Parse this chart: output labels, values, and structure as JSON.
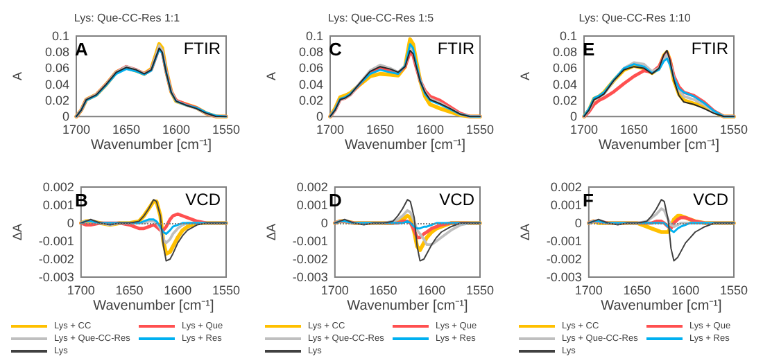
{
  "chart_data": [
    {
      "type": "line",
      "title": "Lys: Que-CC-Res 1:1",
      "xlabel": "Wavenumber [cm⁻¹]",
      "ylabel": "A",
      "annotations": [
        "A",
        "FTIR"
      ],
      "marker": "none",
      "line_style": "solid",
      "x": [
        1700,
        1695,
        1690,
        1685,
        1680,
        1670,
        1660,
        1650,
        1640,
        1632,
        1625,
        1620,
        1617,
        1614,
        1610,
        1605,
        1600,
        1590,
        1580,
        1570,
        1560,
        1550
      ],
      "xlim": [
        1700,
        1550
      ],
      "xticks": [
        1700,
        1650,
        1600,
        1550
      ],
      "ylim": [
        0,
        0.1
      ],
      "yticks": [
        0,
        0.02,
        0.04,
        0.06,
        0.08,
        0.1
      ],
      "series": [
        {
          "color": "#ffc000",
          "values": [
            0,
            0.008,
            0.021,
            0.024,
            0.027,
            0.04,
            0.055,
            0.061,
            0.057,
            0.053,
            0.059,
            0.078,
            0.09,
            0.085,
            0.057,
            0.031,
            0.019,
            0.015,
            0.011,
            0.004,
            0,
            0
          ]
        },
        {
          "color": "#ff5050",
          "values": [
            0,
            0.008,
            0.021,
            0.024,
            0.027,
            0.04,
            0.055,
            0.062,
            0.058,
            0.053,
            0.058,
            0.075,
            0.086,
            0.081,
            0.056,
            0.031,
            0.02,
            0.015,
            0.011,
            0.004,
            0,
            0
          ]
        },
        {
          "color": "#bfbfbf",
          "values": [
            0,
            0.008,
            0.021,
            0.024,
            0.027,
            0.04,
            0.055,
            0.062,
            0.058,
            0.053,
            0.058,
            0.076,
            0.088,
            0.082,
            0.056,
            0.031,
            0.019,
            0.014,
            0.01,
            0.004,
            0,
            0
          ]
        },
        {
          "color": "#00b0f0",
          "values": [
            0,
            0.008,
            0.02,
            0.023,
            0.026,
            0.039,
            0.053,
            0.059,
            0.056,
            0.052,
            0.057,
            0.074,
            0.083,
            0.079,
            0.055,
            0.03,
            0.019,
            0.014,
            0.011,
            0.005,
            0.001,
            0
          ]
        },
        {
          "color": "#262626",
          "values": [
            0,
            0.008,
            0.021,
            0.024,
            0.027,
            0.04,
            0.055,
            0.061,
            0.058,
            0.053,
            0.058,
            0.075,
            0.085,
            0.08,
            0.055,
            0.03,
            0.019,
            0.014,
            0.01,
            0.004,
            0,
            0
          ]
        }
      ]
    },
    {
      "type": "line",
      "title": "Lys: Que-CC-Res 1:5",
      "xlabel": "Wavenumber [cm⁻¹]",
      "ylabel": "A",
      "annotations": [
        "C",
        "FTIR"
      ],
      "marker": "none",
      "line_style": "solid",
      "x": [
        1700,
        1695,
        1690,
        1685,
        1680,
        1670,
        1660,
        1650,
        1640,
        1632,
        1625,
        1620,
        1617,
        1614,
        1610,
        1605,
        1600,
        1590,
        1580,
        1570,
        1560,
        1550
      ],
      "xlim": [
        1700,
        1550
      ],
      "xticks": [
        1700,
        1650,
        1600,
        1550
      ],
      "ylim": [
        0,
        0.1
      ],
      "yticks": [
        0,
        0.02,
        0.04,
        0.06,
        0.08,
        0.1
      ],
      "series": [
        {
          "color": "#ffc000",
          "values": [
            0,
            0.01,
            0.024,
            0.026,
            0.029,
            0.04,
            0.05,
            0.053,
            0.052,
            0.051,
            0.062,
            0.096,
            0.09,
            0.07,
            0.045,
            0.025,
            0.015,
            0.01,
            0.006,
            0.002,
            0,
            0
          ]
        },
        {
          "color": "#ff5050",
          "values": [
            0,
            0.008,
            0.021,
            0.023,
            0.027,
            0.041,
            0.055,
            0.06,
            0.057,
            0.054,
            0.062,
            0.08,
            0.076,
            0.062,
            0.045,
            0.032,
            0.025,
            0.02,
            0.012,
            0.004,
            0,
            0
          ]
        },
        {
          "color": "#bfbfbf",
          "values": [
            0,
            0.008,
            0.021,
            0.023,
            0.027,
            0.042,
            0.057,
            0.064,
            0.06,
            0.055,
            0.063,
            0.085,
            0.08,
            0.065,
            0.045,
            0.03,
            0.022,
            0.017,
            0.01,
            0.003,
            0,
            0
          ]
        },
        {
          "color": "#00b0f0",
          "values": [
            0,
            0.009,
            0.022,
            0.024,
            0.028,
            0.041,
            0.053,
            0.058,
            0.055,
            0.053,
            0.063,
            0.09,
            0.085,
            0.067,
            0.045,
            0.028,
            0.02,
            0.015,
            0.009,
            0.003,
            0,
            0
          ]
        },
        {
          "color": "#262626",
          "values": [
            0,
            0.008,
            0.021,
            0.023,
            0.027,
            0.042,
            0.056,
            0.062,
            0.059,
            0.055,
            0.062,
            0.082,
            0.078,
            0.063,
            0.044,
            0.03,
            0.021,
            0.016,
            0.01,
            0.003,
            0,
            0
          ]
        }
      ]
    },
    {
      "type": "line",
      "title": "Lys: Que-CC-Res 1:10",
      "xlabel": "Wavenumber [cm⁻¹]",
      "ylabel": "A",
      "annotations": [
        "E",
        "FTIR"
      ],
      "marker": "none",
      "line_style": "solid",
      "x": [
        1700,
        1695,
        1690,
        1685,
        1680,
        1670,
        1660,
        1650,
        1640,
        1632,
        1625,
        1620,
        1617,
        1614,
        1610,
        1605,
        1600,
        1590,
        1580,
        1570,
        1560,
        1550
      ],
      "xlim": [
        1700,
        1550
      ],
      "xticks": [
        1700,
        1650,
        1600,
        1550
      ],
      "ylim": [
        0,
        0.1
      ],
      "yticks": [
        0,
        0.02,
        0.04,
        0.06,
        0.08,
        0.1
      ],
      "series": [
        {
          "color": "#ffc000",
          "values": [
            0,
            0.008,
            0.022,
            0.025,
            0.03,
            0.045,
            0.058,
            0.063,
            0.06,
            0.054,
            0.06,
            0.076,
            0.08,
            0.07,
            0.045,
            0.028,
            0.02,
            0.016,
            0.013,
            0.006,
            0,
            0
          ]
        },
        {
          "color": "#ff5050",
          "values": [
            0,
            0.006,
            0.015,
            0.02,
            0.023,
            0.031,
            0.041,
            0.05,
            0.057,
            0.055,
            0.062,
            0.075,
            0.079,
            0.07,
            0.05,
            0.037,
            0.03,
            0.026,
            0.018,
            0.007,
            0,
            0
          ]
        },
        {
          "color": "#bfbfbf",
          "values": [
            0,
            0.008,
            0.021,
            0.024,
            0.028,
            0.045,
            0.06,
            0.067,
            0.065,
            0.056,
            0.06,
            0.072,
            0.077,
            0.068,
            0.048,
            0.033,
            0.025,
            0.021,
            0.015,
            0.006,
            0,
            0
          ]
        },
        {
          "color": "#00b0f0",
          "values": [
            0.001,
            0.01,
            0.023,
            0.026,
            0.03,
            0.046,
            0.06,
            0.065,
            0.062,
            0.054,
            0.058,
            0.069,
            0.072,
            0.064,
            0.048,
            0.035,
            0.03,
            0.025,
            0.017,
            0.007,
            0,
            0
          ]
        },
        {
          "color": "#262626",
          "values": [
            0,
            0.008,
            0.021,
            0.024,
            0.028,
            0.045,
            0.058,
            0.062,
            0.06,
            0.053,
            0.06,
            0.077,
            0.082,
            0.07,
            0.045,
            0.026,
            0.018,
            0.015,
            0.01,
            0.004,
            0,
            0
          ]
        }
      ]
    },
    {
      "type": "line",
      "xlabel": "Wavenumber [cm⁻¹]",
      "ylabel": "ΔA",
      "annotations": [
        "B",
        "VCD"
      ],
      "marker": "none",
      "line_style": "solid",
      "legend": "bottom",
      "x": [
        1700,
        1695,
        1690,
        1680,
        1670,
        1660,
        1650,
        1640,
        1635,
        1630,
        1625,
        1622,
        1618,
        1615,
        1612,
        1608,
        1605,
        1600,
        1595,
        1590,
        1580,
        1570,
        1560,
        1550
      ],
      "xlim": [
        1700,
        1550
      ],
      "xticks": [
        1700,
        1650,
        1600,
        1550
      ],
      "ylim": [
        -0.003,
        0.002
      ],
      "yticks": [
        -0.003,
        -0.002,
        -0.001,
        0,
        0.001,
        0.002
      ],
      "ref_lines": [
        {
          "axis": "y",
          "value": 0,
          "color": "#7f7f7f",
          "line_style": "dotted"
        }
      ],
      "series": [
        {
          "name": "Lys + CC",
          "color": "#ffc000",
          "values": [
            0,
            0.0001,
            0.0001,
            0,
            -0.0001,
            0,
            0,
            0.0001,
            0.0004,
            0.0008,
            0.0012,
            0.0012,
            0.0004,
            -0.001,
            -0.0017,
            -0.0016,
            -0.0013,
            -0.0008,
            -0.0004,
            -0.0002,
            0,
            0,
            0,
            0
          ]
        },
        {
          "name": "Lys + Que",
          "color": "#ff5050",
          "values": [
            0,
            -0.0001,
            -0.0001,
            0,
            0,
            0,
            -0.0001,
            -0.0003,
            -0.0003,
            -0.0002,
            -0.0001,
            -0.0002,
            -0.0004,
            -0.0004,
            -0.0002,
            0.0002,
            0.0004,
            0.0005,
            0.0004,
            0.0003,
            0.0001,
            0,
            0,
            0
          ]
        },
        {
          "name": "Lys + Que-CC-Res",
          "color": "#bfbfbf",
          "values": [
            0,
            0.0001,
            0.0001,
            0,
            -0.0001,
            0,
            0,
            0,
            0,
            0.0001,
            0.0001,
            0,
            -0.0003,
            -0.0009,
            -0.0011,
            -0.0009,
            -0.0006,
            -0.0003,
            -0.0001,
            0,
            0,
            0,
            0,
            0
          ]
        },
        {
          "name": "Lys + Res",
          "color": "#00b0f0",
          "values": [
            0,
            0.0001,
            0.0001,
            0,
            0,
            0,
            0,
            0,
            0.0001,
            0.0002,
            0.0002,
            0.0001,
            -0.0002,
            -0.0005,
            -0.0006,
            -0.0004,
            -0.0002,
            -0.0001,
            0,
            0,
            0,
            0,
            0,
            0
          ]
        },
        {
          "name": "Lys",
          "color": "#404040",
          "values": [
            0,
            0.0001,
            0.0002,
            0,
            -0.0001,
            0,
            0,
            0.0001,
            0.0004,
            0.0008,
            0.0013,
            0.0012,
            0.0004,
            -0.0012,
            -0.0021,
            -0.002,
            -0.0017,
            -0.0011,
            -0.0007,
            -0.0004,
            -0.0001,
            0,
            0,
            0
          ]
        }
      ]
    },
    {
      "type": "line",
      "xlabel": "Wavenumber [cm⁻¹]",
      "ylabel": "ΔA",
      "annotations": [
        "D",
        "VCD"
      ],
      "marker": "none",
      "line_style": "solid",
      "legend": "bottom",
      "x": [
        1700,
        1695,
        1690,
        1680,
        1670,
        1660,
        1650,
        1640,
        1635,
        1630,
        1625,
        1622,
        1618,
        1615,
        1612,
        1608,
        1605,
        1600,
        1595,
        1590,
        1580,
        1570,
        1560,
        1550
      ],
      "xlim": [
        1700,
        1550
      ],
      "xticks": [
        1700,
        1650,
        1600,
        1550
      ],
      "ylim": [
        -0.003,
        0.002
      ],
      "yticks": [
        -0.003,
        -0.002,
        -0.001,
        0,
        0.001,
        0.002
      ],
      "ref_lines": [
        {
          "axis": "y",
          "value": 0,
          "color": "#7f7f7f",
          "line_style": "dotted"
        }
      ],
      "series": [
        {
          "name": "Lys + CC",
          "color": "#ffc000",
          "values": [
            0,
            0.0001,
            0.0001,
            0,
            0,
            0,
            0,
            0,
            0.0001,
            0.0002,
            0.0004,
            0.0003,
            -0.0005,
            -0.0013,
            -0.0015,
            -0.0011,
            -0.0008,
            -0.0005,
            -0.0003,
            -0.0002,
            0,
            0,
            0,
            0
          ]
        },
        {
          "name": "Lys + Que",
          "color": "#ff5050",
          "values": [
            0,
            0.0001,
            0.0001,
            0,
            0,
            0,
            0,
            0,
            0,
            0.0001,
            0.0001,
            0,
            -0.0004,
            -0.0008,
            -0.0008,
            -0.0006,
            -0.0005,
            -0.0003,
            -0.0002,
            -0.0001,
            0,
            0,
            0,
            0
          ]
        },
        {
          "name": "Lys + Que-CC-Res",
          "color": "#bfbfbf",
          "values": [
            0,
            0.0001,
            0.0001,
            0,
            0,
            0,
            0,
            0.0001,
            0.0002,
            0.0004,
            0.0007,
            0.0006,
            0.0001,
            -0.0004,
            -0.0006,
            -0.0009,
            -0.0012,
            -0.0012,
            -0.001,
            -0.0008,
            -0.0004,
            -0.0001,
            0,
            0
          ]
        },
        {
          "name": "Lys + Res",
          "color": "#00b0f0",
          "values": [
            0,
            0.0001,
            0.0001,
            0,
            0,
            0,
            0,
            0,
            0,
            0,
            0.0001,
            0,
            -0.0002,
            -0.0003,
            -0.0003,
            -0.0002,
            -0.0002,
            -0.0001,
            0,
            0,
            0,
            0,
            0,
            0
          ]
        },
        {
          "name": "Lys",
          "color": "#404040",
          "values": [
            0,
            0.0001,
            0.0002,
            0,
            -0.0001,
            0,
            0,
            0.0001,
            0.0004,
            0.0008,
            0.0013,
            0.0012,
            0.0003,
            -0.0013,
            -0.0021,
            -0.002,
            -0.0017,
            -0.0012,
            -0.0008,
            -0.0005,
            -0.0002,
            0,
            0,
            0
          ]
        }
      ]
    },
    {
      "type": "line",
      "xlabel": "Wavenumber [cm⁻¹]",
      "ylabel": "ΔA",
      "annotations": [
        "F",
        "VCD"
      ],
      "marker": "none",
      "line_style": "solid",
      "legend": "bottom",
      "x": [
        1700,
        1695,
        1690,
        1680,
        1670,
        1660,
        1650,
        1640,
        1635,
        1630,
        1625,
        1622,
        1618,
        1615,
        1612,
        1608,
        1605,
        1600,
        1595,
        1590,
        1580,
        1570,
        1560,
        1550
      ],
      "xlim": [
        1700,
        1550
      ],
      "xticks": [
        1700,
        1650,
        1600,
        1550
      ],
      "ylim": [
        -0.003,
        0.002
      ],
      "yticks": [
        -0.003,
        -0.002,
        -0.001,
        0,
        0.001,
        0.002
      ],
      "ref_lines": [
        {
          "axis": "y",
          "value": 0,
          "color": "#7f7f7f",
          "line_style": "dotted"
        }
      ],
      "series": [
        {
          "name": "Lys + CC",
          "color": "#ffc000",
          "values": [
            0,
            0.0001,
            0,
            0,
            0,
            0,
            0,
            -0.0002,
            -0.0003,
            -0.0004,
            -0.0005,
            -0.0005,
            -0.0005,
            -0.0002,
            0.0002,
            0.0004,
            0.0004,
            0.0003,
            0.0002,
            0.0001,
            0,
            0,
            0,
            0
          ]
        },
        {
          "name": "Lys + Que",
          "color": "#ff5050",
          "values": [
            0,
            0.0001,
            0.0001,
            0,
            0,
            0,
            0,
            0,
            0,
            0.0001,
            0.0001,
            0,
            -0.0002,
            -0.0003,
            0,
            0.0002,
            0.0003,
            0.0003,
            0.0002,
            0.0001,
            0,
            0,
            0,
            0
          ]
        },
        {
          "name": "Lys + Que-CC-Res",
          "color": "#bfbfbf",
          "values": [
            0,
            0.0001,
            0.0001,
            0,
            0,
            0,
            0,
            0.0001,
            0.0003,
            0.0005,
            0.0008,
            0.0007,
            0.0002,
            -0.0001,
            -0.0002,
            -0.0001,
            0,
            0,
            0,
            0,
            0,
            0,
            0,
            0
          ]
        },
        {
          "name": "Lys + Res",
          "color": "#00b0f0",
          "values": [
            0,
            0.0001,
            0.0001,
            0,
            0,
            0,
            0,
            0,
            0,
            0,
            0,
            0,
            -0.0002,
            -0.0004,
            -0.0005,
            -0.0003,
            -0.0002,
            -0.0001,
            0,
            0,
            0,
            0,
            0,
            0
          ]
        },
        {
          "name": "Lys",
          "color": "#404040",
          "values": [
            0,
            0.0001,
            0.0002,
            0,
            -0.0001,
            0,
            0,
            0.0001,
            0.0004,
            0.0008,
            0.0013,
            0.0012,
            0.0002,
            -0.0014,
            -0.0021,
            -0.0019,
            -0.0016,
            -0.0011,
            -0.0008,
            -0.0005,
            -0.0002,
            0,
            0,
            0
          ]
        }
      ]
    }
  ]
}
